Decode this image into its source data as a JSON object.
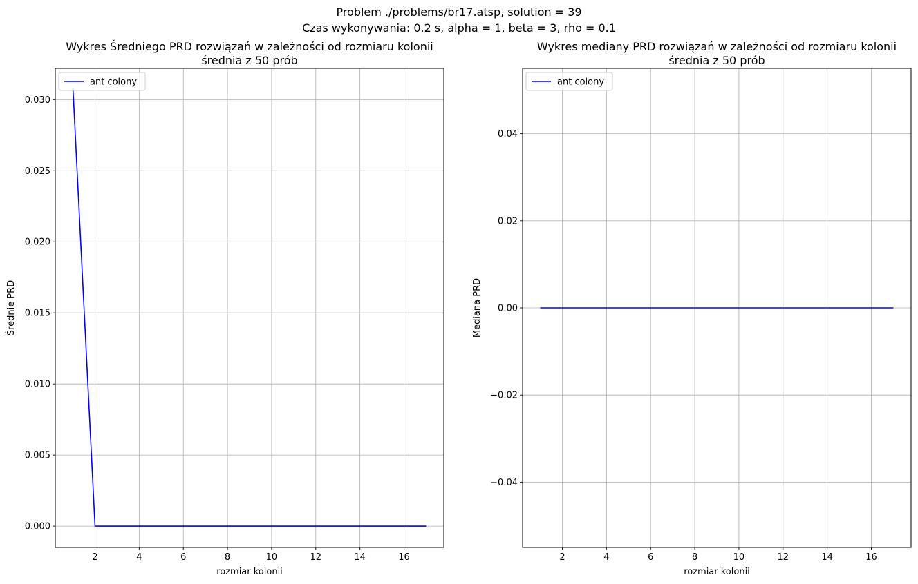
{
  "suptitle": {
    "line1": "Problem ./problems/br17.atsp, solution = 39",
    "line2": "Czas wykonywania: 0.2 s, alpha = 1, beta = 3, rho = 0.1"
  },
  "chart_data": [
    {
      "type": "line",
      "title": "Wykres Średniego PRD rozwiązań w zależności od rozmiaru kolonii",
      "subtitle": "średnia z 50 prób",
      "xlabel": "rozmiar kolonii",
      "ylabel": "Średnie PRD",
      "xlim": [
        0.2,
        17.8
      ],
      "ylim": [
        -0.0015,
        0.0322
      ],
      "xticks": [
        2,
        4,
        6,
        8,
        10,
        12,
        14,
        16
      ],
      "yticks": [
        0.0,
        0.005,
        0.01,
        0.015,
        0.02,
        0.025,
        0.03
      ],
      "ytick_labels": [
        "0.000",
        "0.005",
        "0.010",
        "0.015",
        "0.020",
        "0.025",
        "0.030"
      ],
      "grid": true,
      "legend": "upper left",
      "series": [
        {
          "name": "ant colony",
          "color": "#0000ff",
          "x": [
            1,
            2,
            3,
            4,
            5,
            6,
            7,
            8,
            9,
            10,
            11,
            12,
            13,
            14,
            15,
            16,
            17
          ],
          "values": [
            0.0308,
            0.0,
            0.0,
            0.0,
            0.0,
            0.0,
            0.0,
            0.0,
            0.0,
            0.0,
            0.0,
            0.0,
            0.0,
            0.0,
            0.0,
            0.0,
            0.0
          ]
        }
      ]
    },
    {
      "type": "line",
      "title": "Wykres mediany PRD rozwiązań w zależności od rozmiaru kolonii",
      "subtitle": "średnia z 50 prób",
      "xlabel": "rozmiar kolonii",
      "ylabel": "Mediana PRD",
      "xlim": [
        0.2,
        17.8
      ],
      "ylim": [
        -0.055,
        0.055
      ],
      "xticks": [
        2,
        4,
        6,
        8,
        10,
        12,
        14,
        16
      ],
      "yticks": [
        -0.04,
        -0.02,
        0.0,
        0.02,
        0.04
      ],
      "ytick_labels": [
        "−0.04",
        "−0.02",
        "0.00",
        "0.02",
        "0.04"
      ],
      "grid": true,
      "legend": "upper left",
      "series": [
        {
          "name": "ant colony",
          "color": "#0000ff",
          "x": [
            1,
            2,
            3,
            4,
            5,
            6,
            7,
            8,
            9,
            10,
            11,
            12,
            13,
            14,
            15,
            16,
            17
          ],
          "values": [
            0.0,
            0.0,
            0.0,
            0.0,
            0.0,
            0.0,
            0.0,
            0.0,
            0.0,
            0.0,
            0.0,
            0.0,
            0.0,
            0.0,
            0.0,
            0.0,
            0.0
          ]
        }
      ]
    }
  ]
}
